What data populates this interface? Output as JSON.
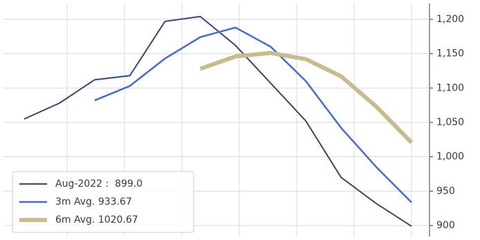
{
  "chart_data": {
    "type": "line",
    "categories": [
      null,
      null,
      null,
      null,
      null,
      null,
      null,
      null,
      null,
      null,
      null,
      null
    ],
    "series": [
      {
        "name": "Aug-2022 :  899.0",
        "color": "#2e4a6e",
        "width": 2,
        "values": [
          1055,
          1078,
          1112,
          1118,
          1197,
          1204,
          1162,
          1107,
          1052,
          970,
          932,
          899
        ]
      },
      {
        "name": "3m Avg. 933.67",
        "color": "#4169e1",
        "width": 2.5,
        "values": [
          null,
          null,
          1082,
          1103,
          1143,
          1174,
          1188,
          1160,
          1110,
          1042,
          985,
          933.67
        ]
      },
      {
        "name": "6m Avg. 1020.67",
        "color": "#c8bc8f",
        "width": 6,
        "values": [
          null,
          null,
          null,
          null,
          null,
          1128,
          1146,
          1151,
          1142,
          1117,
          1073,
          1020.67
        ]
      }
    ],
    "ylim": [
      884,
      1223
    ],
    "yticks": [
      900,
      950,
      {
        "value": 1000,
        "label": "1,000"
      },
      {
        "value": 1050,
        "label": "1,050"
      },
      {
        "value": 1100,
        "label": "1,100"
      },
      {
        "value": 1150,
        "label": "1,150"
      },
      {
        "value": 1200,
        "label": "1,200"
      }
    ],
    "y_axis_side": "right",
    "grid": true,
    "legend": "lower-left"
  }
}
